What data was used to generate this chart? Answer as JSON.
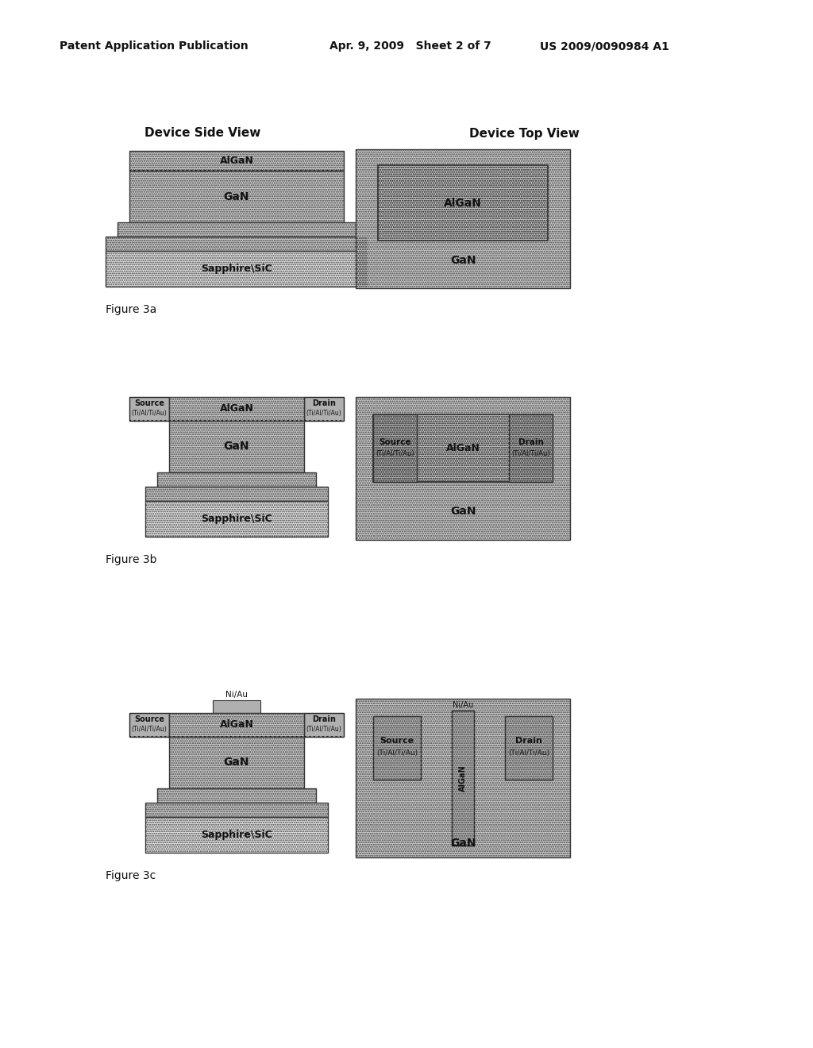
{
  "bg_color": "#ffffff",
  "header_left": "Patent Application Publication",
  "header_mid": "Apr. 9, 2009   Sheet 2 of 7",
  "header_right": "US 2009/0090984 A1",
  "gray_hatch": "#c8c8c8",
  "gray_light": "#e2e2e2",
  "gray_dark": "#b0b0b0",
  "gray_metal": "#b8b8b8"
}
